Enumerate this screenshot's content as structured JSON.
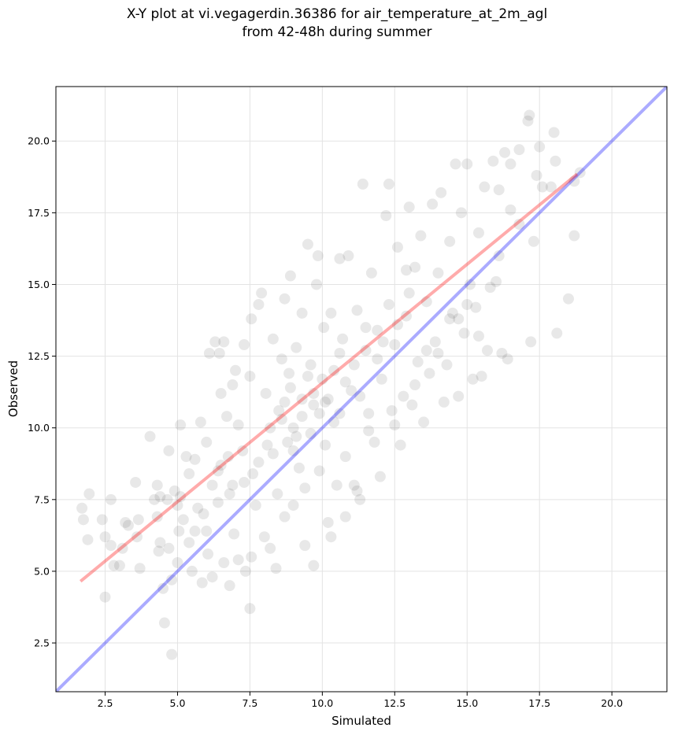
{
  "chart_data": {
    "type": "scatter",
    "title": "X-Y plot at vi.vegagerdin.36386 for air_temperature_at_2m_agl",
    "subtitle": "from 42-48h during summer",
    "xlabel": "Simulated",
    "ylabel": "Observed",
    "xlim": [
      0.8,
      21.9
    ],
    "ylim": [
      0.8,
      21.9
    ],
    "xticks": [
      "2.5",
      "5.0",
      "7.5",
      "10.0",
      "12.5",
      "15.0",
      "17.5",
      "20.0"
    ],
    "yticks": [
      "2.5",
      "5.0",
      "7.5",
      "10.0",
      "12.5",
      "15.0",
      "17.5",
      "20.0"
    ],
    "grid": true,
    "point_color": "#000000",
    "identity_line": {
      "color": "#0000ff",
      "from": [
        0.8,
        0.8
      ],
      "to": [
        21.9,
        21.9
      ]
    },
    "fit_line": {
      "color": "#ff0000",
      "from": [
        1.65,
        4.65
      ],
      "to": [
        18.8,
        18.85
      ]
    },
    "points": [
      [
        1.7,
        7.2
      ],
      [
        1.75,
        6.8
      ],
      [
        1.9,
        6.1
      ],
      [
        1.95,
        7.7
      ],
      [
        2.4,
        6.8
      ],
      [
        2.5,
        6.2
      ],
      [
        2.7,
        7.5
      ],
      [
        2.5,
        4.1
      ],
      [
        2.7,
        5.9
      ],
      [
        2.8,
        5.2
      ],
      [
        3.0,
        5.2
      ],
      [
        3.1,
        5.8
      ],
      [
        3.2,
        6.7
      ],
      [
        3.3,
        6.6
      ],
      [
        3.55,
        8.1
      ],
      [
        3.6,
        6.2
      ],
      [
        3.7,
        5.1
      ],
      [
        3.65,
        6.8
      ],
      [
        4.05,
        9.7
      ],
      [
        4.2,
        7.5
      ],
      [
        4.3,
        8.0
      ],
      [
        4.3,
        6.9
      ],
      [
        4.35,
        5.7
      ],
      [
        4.4,
        7.6
      ],
      [
        4.5,
        4.4
      ],
      [
        4.55,
        3.2
      ],
      [
        4.65,
        7.5
      ],
      [
        4.7,
        9.2
      ],
      [
        4.8,
        2.1
      ],
      [
        4.8,
        4.7
      ],
      [
        4.9,
        7.8
      ],
      [
        5.0,
        5.3
      ],
      [
        5.05,
        6.4
      ],
      [
        5.1,
        7.6
      ],
      [
        5.1,
        10.1
      ],
      [
        5.3,
        9.0
      ],
      [
        5.4,
        8.4
      ],
      [
        5.4,
        6.0
      ],
      [
        5.5,
        5.0
      ],
      [
        5.6,
        8.9
      ],
      [
        5.7,
        7.2
      ],
      [
        5.8,
        10.2
      ],
      [
        5.85,
        4.6
      ],
      [
        6.0,
        9.5
      ],
      [
        6.0,
        6.4
      ],
      [
        6.05,
        5.6
      ],
      [
        6.1,
        12.6
      ],
      [
        6.2,
        4.8
      ],
      [
        6.3,
        13.0
      ],
      [
        6.4,
        8.5
      ],
      [
        6.4,
        7.4
      ],
      [
        6.45,
        12.6
      ],
      [
        6.5,
        11.2
      ],
      [
        6.6,
        13.0
      ],
      [
        6.6,
        5.3
      ],
      [
        6.7,
        10.4
      ],
      [
        6.75,
        9.0
      ],
      [
        6.8,
        4.5
      ],
      [
        6.9,
        8.0
      ],
      [
        6.9,
        11.5
      ],
      [
        6.95,
        6.3
      ],
      [
        7.0,
        12.0
      ],
      [
        7.1,
        10.1
      ],
      [
        7.1,
        5.4
      ],
      [
        7.25,
        9.2
      ],
      [
        7.3,
        12.9
      ],
      [
        7.35,
        5.0
      ],
      [
        7.5,
        3.7
      ],
      [
        7.5,
        11.8
      ],
      [
        7.55,
        13.8
      ],
      [
        7.55,
        5.5
      ],
      [
        7.6,
        8.4
      ],
      [
        7.7,
        7.3
      ],
      [
        7.8,
        14.3
      ],
      [
        7.9,
        14.7
      ],
      [
        8.0,
        6.2
      ],
      [
        8.05,
        11.2
      ],
      [
        8.1,
        9.4
      ],
      [
        8.2,
        5.8
      ],
      [
        8.3,
        13.1
      ],
      [
        8.4,
        5.1
      ],
      [
        8.45,
        7.7
      ],
      [
        8.5,
        10.6
      ],
      [
        8.6,
        12.4
      ],
      [
        8.7,
        14.5
      ],
      [
        8.7,
        6.9
      ],
      [
        8.8,
        9.5
      ],
      [
        8.85,
        11.9
      ],
      [
        8.9,
        15.3
      ],
      [
        9.0,
        10.0
      ],
      [
        9.0,
        7.3
      ],
      [
        9.1,
        12.8
      ],
      [
        9.2,
        8.6
      ],
      [
        9.3,
        14.0
      ],
      [
        9.3,
        11.0
      ],
      [
        9.4,
        7.9
      ],
      [
        9.4,
        5.9
      ],
      [
        9.5,
        16.4
      ],
      [
        9.6,
        9.8
      ],
      [
        9.6,
        12.2
      ],
      [
        9.7,
        5.2
      ],
      [
        9.7,
        10.8
      ],
      [
        9.8,
        15.0
      ],
      [
        9.85,
        16.0
      ],
      [
        9.9,
        8.5
      ],
      [
        10.0,
        11.7
      ],
      [
        10.05,
        13.5
      ],
      [
        10.1,
        9.4
      ],
      [
        10.2,
        6.7
      ],
      [
        10.2,
        11.0
      ],
      [
        10.3,
        14.0
      ],
      [
        10.3,
        6.2
      ],
      [
        10.4,
        12.0
      ],
      [
        10.5,
        8.0
      ],
      [
        10.6,
        15.9
      ],
      [
        10.6,
        10.5
      ],
      [
        10.7,
        13.1
      ],
      [
        10.8,
        9.0
      ],
      [
        10.9,
        16.0
      ],
      [
        11.0,
        11.3
      ],
      [
        11.1,
        8.0
      ],
      [
        11.2,
        14.1
      ],
      [
        11.3,
        7.5
      ],
      [
        11.3,
        11.1
      ],
      [
        11.4,
        18.5
      ],
      [
        11.5,
        12.7
      ],
      [
        11.6,
        9.9
      ],
      [
        11.7,
        15.4
      ],
      [
        11.8,
        9.5
      ],
      [
        11.9,
        13.4
      ],
      [
        12.0,
        8.3
      ],
      [
        12.05,
        11.7
      ],
      [
        12.2,
        17.4
      ],
      [
        12.3,
        18.5
      ],
      [
        12.3,
        14.3
      ],
      [
        12.4,
        10.6
      ],
      [
        12.5,
        12.9
      ],
      [
        12.6,
        16.3
      ],
      [
        12.7,
        9.4
      ],
      [
        12.8,
        11.1
      ],
      [
        12.9,
        13.9
      ],
      [
        13.0,
        17.7
      ],
      [
        13.1,
        10.8
      ],
      [
        13.2,
        15.6
      ],
      [
        13.3,
        12.3
      ],
      [
        13.4,
        16.7
      ],
      [
        13.5,
        10.2
      ],
      [
        13.6,
        14.4
      ],
      [
        13.7,
        11.9
      ],
      [
        13.8,
        17.8
      ],
      [
        13.9,
        13.0
      ],
      [
        14.0,
        15.4
      ],
      [
        14.1,
        18.2
      ],
      [
        14.2,
        10.9
      ],
      [
        14.3,
        12.2
      ],
      [
        14.4,
        16.5
      ],
      [
        14.5,
        14.0
      ],
      [
        14.6,
        19.2
      ],
      [
        14.7,
        11.1
      ],
      [
        14.8,
        17.5
      ],
      [
        14.9,
        13.3
      ],
      [
        15.0,
        19.2
      ],
      [
        15.1,
        15.0
      ],
      [
        15.2,
        11.7
      ],
      [
        15.3,
        14.2
      ],
      [
        15.4,
        16.8
      ],
      [
        15.5,
        11.8
      ],
      [
        15.6,
        18.4
      ],
      [
        15.7,
        12.7
      ],
      [
        15.8,
        14.9
      ],
      [
        15.9,
        19.3
      ],
      [
        16.0,
        15.1
      ],
      [
        16.1,
        18.3
      ],
      [
        16.2,
        12.6
      ],
      [
        16.3,
        19.6
      ],
      [
        16.4,
        12.4
      ],
      [
        16.5,
        19.2
      ],
      [
        16.8,
        19.7
      ],
      [
        17.1,
        20.7
      ],
      [
        17.15,
        20.9
      ],
      [
        17.2,
        13.0
      ],
      [
        17.4,
        18.8
      ],
      [
        17.5,
        19.8
      ],
      [
        17.6,
        18.4
      ],
      [
        17.9,
        18.4
      ],
      [
        18.0,
        20.3
      ],
      [
        18.05,
        19.3
      ],
      [
        18.1,
        13.3
      ],
      [
        18.5,
        14.5
      ],
      [
        18.7,
        16.7
      ],
      [
        18.7,
        18.6
      ],
      [
        18.9,
        18.9
      ],
      [
        17.3,
        16.5
      ],
      [
        16.5,
        17.6
      ],
      [
        15.4,
        13.2
      ],
      [
        14.7,
        13.8
      ],
      [
        13.6,
        12.7
      ],
      [
        12.9,
        15.5
      ],
      [
        11.9,
        12.4
      ],
      [
        10.8,
        11.6
      ],
      [
        9.9,
        10.5
      ],
      [
        9.1,
        9.7
      ],
      [
        8.6,
        10.3
      ],
      [
        8.3,
        9.1
      ],
      [
        7.8,
        8.8
      ],
      [
        7.3,
        8.1
      ],
      [
        6.8,
        7.7
      ],
      [
        6.5,
        8.7
      ],
      [
        6.2,
        8.0
      ],
      [
        5.9,
        7.0
      ],
      [
        5.6,
        6.4
      ],
      [
        5.2,
        6.8
      ],
      [
        5.0,
        7.3
      ],
      [
        4.7,
        5.8
      ],
      [
        4.4,
        6.0
      ],
      [
        10.8,
        6.9
      ],
      [
        11.2,
        7.8
      ],
      [
        11.6,
        10.5
      ],
      [
        12.5,
        10.1
      ],
      [
        13.2,
        11.5
      ],
      [
        14.0,
        12.6
      ],
      [
        14.4,
        13.8
      ],
      [
        15.0,
        14.3
      ],
      [
        16.1,
        16.0
      ],
      [
        16.8,
        17.1
      ],
      [
        8.9,
        11.4
      ],
      [
        9.3,
        10.4
      ],
      [
        9.7,
        11.2
      ],
      [
        10.1,
        10.9
      ],
      [
        10.4,
        10.2
      ],
      [
        9.5,
        11.8
      ],
      [
        8.7,
        10.9
      ],
      [
        8.2,
        10.0
      ],
      [
        9.0,
        9.2
      ],
      [
        10.6,
        12.6
      ],
      [
        11.1,
        12.2
      ],
      [
        11.5,
        13.5
      ],
      [
        12.1,
        13.0
      ],
      [
        12.6,
        13.6
      ],
      [
        13.0,
        14.7
      ]
    ]
  }
}
